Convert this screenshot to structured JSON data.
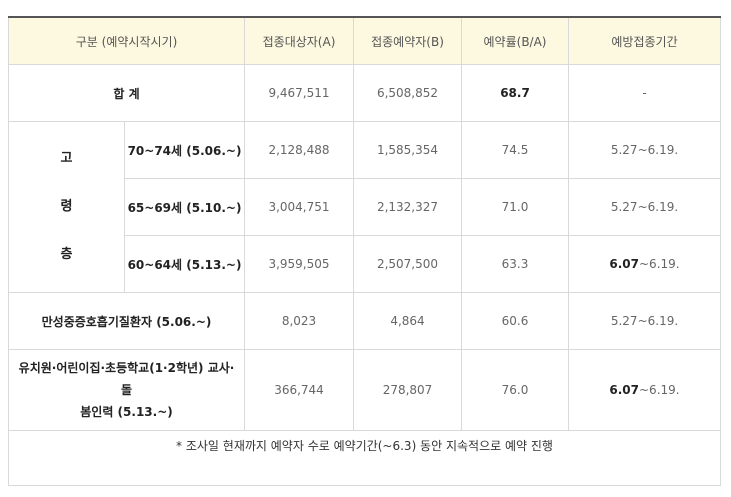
{
  "header": {
    "col1": "구분 (예약시작시기)",
    "col2": "접종대상자(A)",
    "col3": "접종예약자(B)",
    "col4": "예약률(B/A)",
    "col5": "예방접종기간"
  },
  "total": {
    "label": "합 계",
    "target": "9,467,511",
    "reserved": "6,508,852",
    "rate": "68.7",
    "period": "-"
  },
  "elderly": {
    "group_chars": [
      "고",
      "령",
      "층"
    ],
    "rows": [
      {
        "label": "70~74세 (5.06.~)",
        "target": "2,128,488",
        "reserved": "1,585,354",
        "rate": "74.5",
        "period_start": "",
        "period": "5.27~6.19."
      },
      {
        "label": "65~69세 (5.10.~)",
        "target": "3,004,751",
        "reserved": "2,132,327",
        "rate": "71.0",
        "period_start": "",
        "period": "5.27~6.19."
      },
      {
        "label": "60~64세 (5.13.~)",
        "target": "3,959,505",
        "reserved": "2,507,500",
        "rate": "63.3",
        "period_start": "6.07",
        "period": "~6.19."
      }
    ]
  },
  "chronic": {
    "label": "만성중증호흡기질환자 (5.06.~)",
    "target": "8,023",
    "reserved": "4,864",
    "rate": "60.6",
    "period": "5.27~6.19."
  },
  "teacher": {
    "label_line1": "유치원·어린이집·초등학교(1·2학년) 교사·돌",
    "label_line2": "봄인력 (5.13.~)",
    "target": "366,744",
    "reserved": "278,807",
    "rate": "76.0",
    "period_start": "6.07",
    "period": "~6.19."
  },
  "note": "* 조사일 현재까지 예약자 수로 예약기간(~6.3) 동안 지속적으로 예약 진행"
}
